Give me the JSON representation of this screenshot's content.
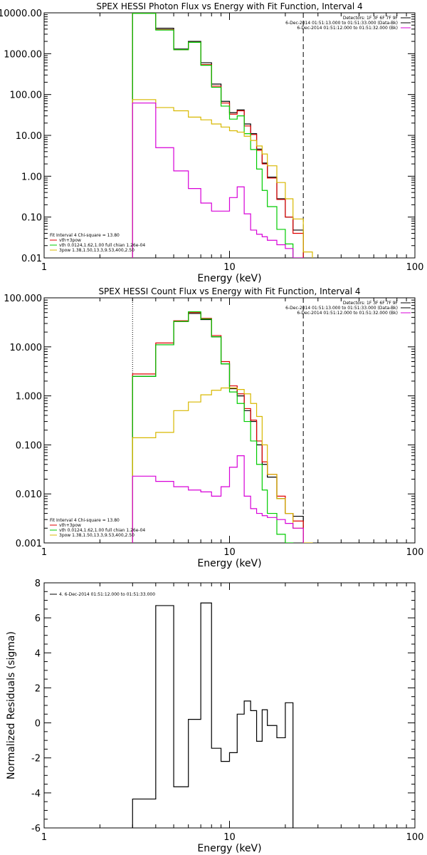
{
  "colors": {
    "black": "#000000",
    "red": "#e00000",
    "green": "#00cc00",
    "yellow": "#d8b800",
    "magenta": "#d800d8"
  },
  "chart_data": [
    {
      "type": "line",
      "title": "SPEX HESSI Photon Flux vs Energy with Fit Function, Interval 4",
      "xlabel": "Energy (keV)",
      "ylabel": "",
      "xscale": "log",
      "yscale": "log",
      "xlim": [
        1,
        100
      ],
      "ylim": [
        0.01,
        10000
      ],
      "x_tick_labels": [
        "1",
        "10",
        "100"
      ],
      "y_tick_labels": [
        "0.01",
        "0.10",
        "1.00",
        "10.00",
        "100.00",
        "1000.00",
        "10000.00"
      ],
      "legend_right": [
        {
          "text": "Detectors: 1F 3F 6F 7F 9F",
          "color": "#000000"
        },
        {
          "text": "6-Dec-2014 01:51:13.000 to 01:51:33.000 (Data-Bk)",
          "color": "#000000"
        },
        {
          "text": "6-Dec-2014 01:51:12.000 to 01:51:32.000 (Bk)",
          "color": "#d800d8"
        }
      ],
      "legend_left": [
        {
          "text": "Fit Interval 4   Chi-square = 13.80",
          "color": "#000000"
        },
        {
          "text": "vth+3pow",
          "color": "#e00000"
        },
        {
          "text": "vth 0.0124,1.62,1.00  full chian 1.26e-04",
          "color": "#00cc00"
        },
        {
          "text": "3pow 1.38,1.50,13.3,9.53,400,2.50",
          "color": "#d8b800"
        }
      ],
      "vlines": [
        {
          "x": 3,
          "style": "dotted"
        },
        {
          "x": 25,
          "style": "dashed"
        }
      ],
      "bin_edges": [
        3,
        4,
        5,
        6,
        7,
        8,
        9,
        10,
        11,
        12,
        13,
        14,
        15,
        16,
        18,
        20,
        22,
        25,
        28
      ],
      "series": [
        {
          "color": "#000000",
          "values": [
            10000,
            4200,
            1300,
            2000,
            600,
            180,
            68,
            36,
            42,
            19,
            11,
            4.6,
            2.1,
            0.95,
            0.28,
            0.1,
            0.048,
            null
          ]
        },
        {
          "color": "#e00000",
          "values": [
            10000,
            3900,
            1250,
            1900,
            540,
            160,
            62,
            33,
            40,
            17,
            10.5,
            4.3,
            2.0,
            0.9,
            0.27,
            0.1,
            0.04,
            null
          ]
        },
        {
          "color": "#00cc00",
          "values": [
            9700,
            3800,
            1250,
            1900,
            520,
            150,
            52,
            25,
            30,
            11,
            4.5,
            1.5,
            0.45,
            0.18,
            0.05,
            0.022,
            0.01,
            null
          ]
        },
        {
          "color": "#d8b800",
          "values": [
            75,
            48,
            40,
            28,
            24,
            19,
            16,
            13,
            12,
            9.5,
            7.5,
            5.5,
            3.5,
            1.8,
            0.7,
            0.28,
            0.09,
            0.014
          ]
        },
        {
          "color": "#d800d8",
          "values": [
            62,
            5.0,
            1.35,
            0.5,
            0.22,
            0.14,
            0.14,
            0.3,
            0.55,
            0.12,
            0.048,
            0.038,
            0.033,
            0.027,
            0.021,
            0.017,
            0.01,
            null
          ]
        }
      ]
    },
    {
      "type": "line",
      "title": "SPEX HESSI Count Flux vs Energy with Fit Function, Interval 4",
      "xlabel": "Energy (keV)",
      "ylabel": "",
      "xscale": "log",
      "yscale": "log",
      "xlim": [
        1,
        100
      ],
      "ylim": [
        0.001,
        100
      ],
      "x_tick_labels": [
        "1",
        "10",
        "100"
      ],
      "y_tick_labels": [
        "0.001",
        "0.010",
        "0.100",
        "1.000",
        "10.000",
        "100.000"
      ],
      "legend_right": [
        {
          "text": "Detectors: 1F 3F 6F 7F 9F",
          "color": "#000000"
        },
        {
          "text": "6-Dec-2014 01:51:13.000 to 01:51:33.000 (Data-Bk)",
          "color": "#000000"
        },
        {
          "text": "6-Dec-2014 01:51:12.000 to 01:51:32.000 (Bk)",
          "color": "#d800d8"
        }
      ],
      "legend_left": [
        {
          "text": "Fit Interval 4   Chi-square = 13.80",
          "color": "#000000"
        },
        {
          "text": "vth+3pow",
          "color": "#e00000"
        },
        {
          "text": "vth 0.0124,1.62,1.00  full chian 1.26e-04",
          "color": "#00cc00"
        },
        {
          "text": "3pow 1.38,1.50,13.3,9.53,400,2.50",
          "color": "#d8b800"
        }
      ],
      "vlines": [
        {
          "x": 3,
          "style": "dotted"
        },
        {
          "x": 25,
          "style": "dashed"
        }
      ],
      "bin_edges": [
        3,
        4,
        5,
        6,
        7,
        8,
        9,
        10,
        11,
        12,
        13,
        14,
        15,
        16,
        18,
        20,
        22,
        25,
        28
      ],
      "series": [
        {
          "color": "#000000",
          "values": [
            2.5,
            11,
            33,
            48,
            36,
            16,
            4.5,
            1.4,
            1.0,
            0.5,
            0.3,
            0.1,
            0.04,
            0.022,
            0.008,
            0.004,
            0.0035,
            null
          ]
        },
        {
          "color": "#e00000",
          "values": [
            2.8,
            12,
            34,
            50,
            38,
            17,
            5.0,
            1.6,
            1.1,
            0.55,
            0.32,
            0.12,
            0.045,
            0.025,
            0.009,
            0.004,
            0.0028,
            null
          ]
        },
        {
          "color": "#00cc00",
          "values": [
            2.5,
            11,
            33,
            52,
            37,
            16,
            4.5,
            1.2,
            0.7,
            0.3,
            0.12,
            0.04,
            0.012,
            0.004,
            0.0015,
            0.001,
            null,
            null
          ]
        },
        {
          "color": "#d8b800",
          "values": [
            0.14,
            0.18,
            0.5,
            0.75,
            1.05,
            1.3,
            1.45,
            1.45,
            1.35,
            1.1,
            0.7,
            0.38,
            0.1,
            0.025,
            0.008,
            0.004,
            0.002,
            0.001
          ]
        },
        {
          "color": "#d800d8",
          "values": [
            0.023,
            0.018,
            0.014,
            0.012,
            0.011,
            0.009,
            0.014,
            0.035,
            0.06,
            0.009,
            0.005,
            0.004,
            0.0036,
            0.0033,
            0.003,
            0.0025,
            0.002,
            null
          ]
        }
      ]
    },
    {
      "type": "line",
      "title": "",
      "xlabel": "Energy (keV)",
      "ylabel": "Normalized Residuals (sigma)",
      "xscale": "log",
      "yscale": "linear",
      "xlim": [
        1,
        100
      ],
      "ylim": [
        -6,
        8
      ],
      "x_tick_labels": [
        "1",
        "10",
        "100"
      ],
      "y_tick_labels": [
        "-6",
        "-4",
        "-2",
        "0",
        "2",
        "4",
        "6",
        "8"
      ],
      "legend_right": [],
      "legend_left": [
        {
          "text": "4. 6-Dec-2014 01:51:12.000 to 01:51:33.000",
          "color": "#000000"
        }
      ],
      "vlines": [],
      "bin_edges": [
        3,
        4,
        5,
        6,
        7,
        8,
        9,
        10,
        11,
        12,
        13,
        14,
        15,
        16,
        18,
        20,
        22,
        25
      ],
      "series": [
        {
          "color": "#000000",
          "values": [
            -4.35,
            6.7,
            -3.65,
            0.2,
            6.85,
            -1.45,
            -2.2,
            -1.7,
            0.5,
            1.25,
            0.7,
            -1.05,
            0.75,
            -0.15,
            -0.85,
            1.15,
            null
          ]
        }
      ]
    }
  ]
}
